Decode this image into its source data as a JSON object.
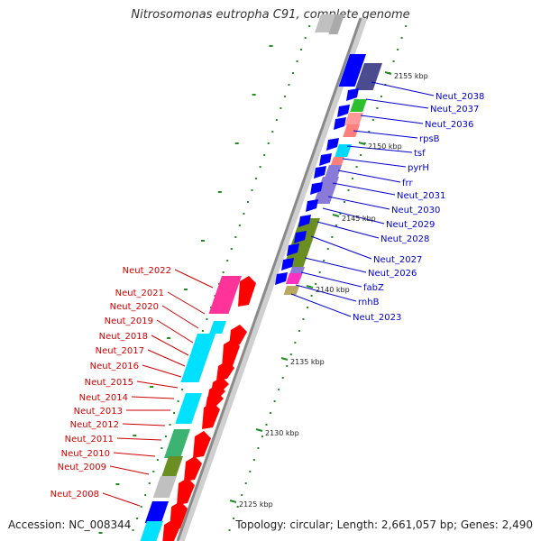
{
  "title": "Nitrosomonas eutropha C91, complete genome",
  "footer": {
    "accession": "Accession: NC_008344",
    "topology": "Topology: circular; Length: 2,661,057 bp; Genes: 2,490"
  },
  "colors": {
    "forward_strand_label": "#0000cc",
    "reverse_strand_label": "#cc0000",
    "backbone": "#999999",
    "tick": "#228b22"
  },
  "ticks": [
    "2155 kbp",
    "2150 kbp",
    "2145 kbp",
    "2140 kbp",
    "2135 kbp",
    "2130 kbp",
    "2125 kbp"
  ],
  "forward_genes": [
    "Neut_2038",
    "Neut_2037",
    "Neut_2036",
    "rpsB",
    "tsf",
    "pyrH",
    "frr",
    "Neut_2031",
    "Neut_2030",
    "Neut_2029",
    "Neut_2028",
    "Neut_2027",
    "Neut_2026",
    "fabZ",
    "rnhB",
    "Neut_2023"
  ],
  "reverse_genes": [
    "Neut_2022",
    "Neut_2021",
    "Neut_2020",
    "Neut_2019",
    "Neut_2018",
    "Neut_2017",
    "Neut_2016",
    "Neut_2015",
    "Neut_2014",
    "Neut_2013",
    "Neut_2012",
    "Neut_2011",
    "Neut_2010",
    "Neut_2009",
    "Neut_2008"
  ]
}
